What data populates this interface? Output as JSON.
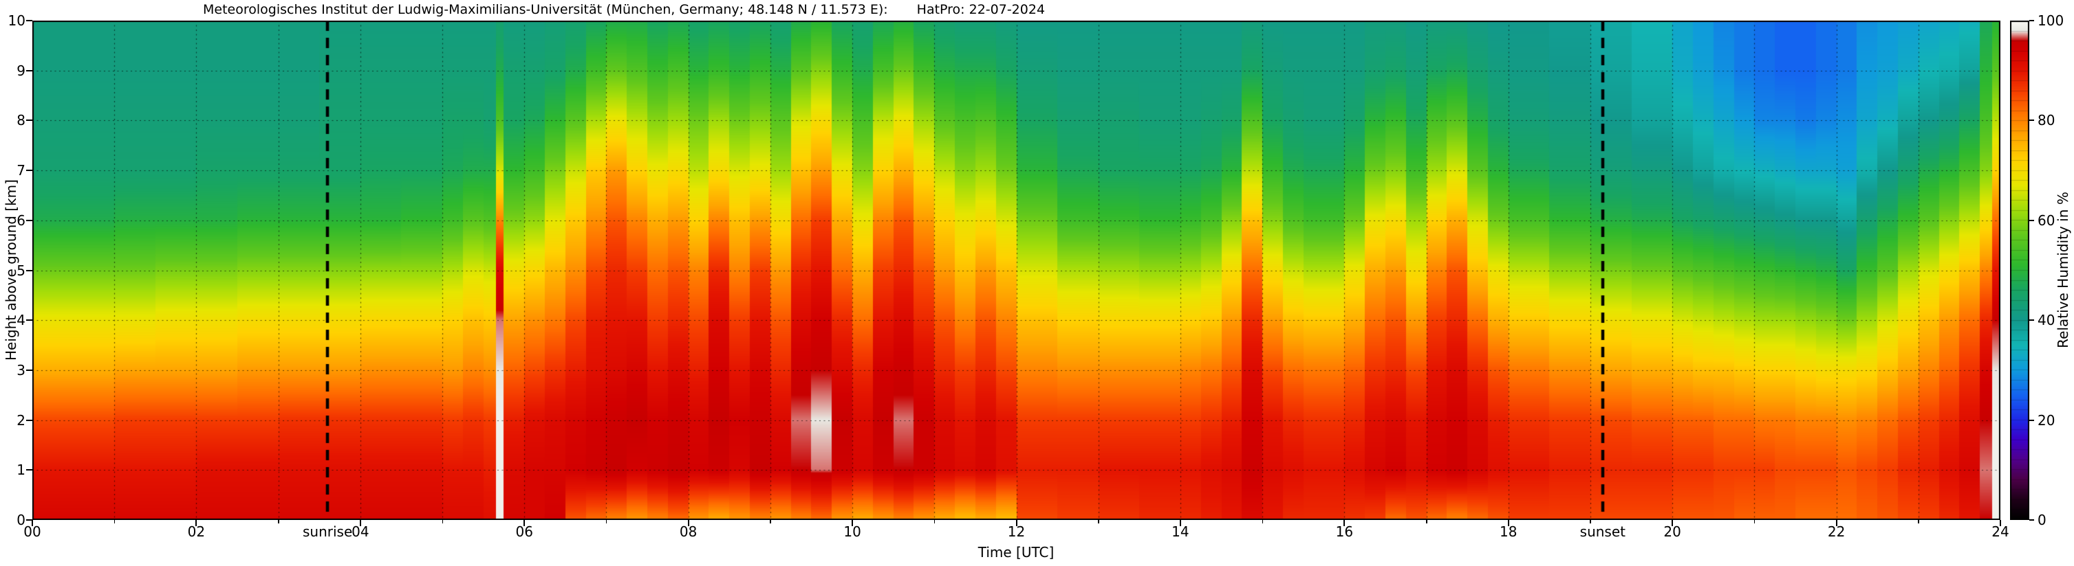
{
  "title": {
    "left": "Meteorologisches Institut der Ludwig-Maximilians-Universität (München, Germany; 48.148 N / 11.573 E):",
    "right": "HatPro: 22-07-2024"
  },
  "annotations": {
    "sunrise": {
      "label": "sunrise",
      "time_utc": 3.6
    },
    "sunset": {
      "label": "sunset",
      "time_utc": 19.15
    }
  },
  "chart_data": {
    "type": "heatmap",
    "title": "Meteorologisches Institut der Ludwig-Maximilians-Universität (München, Germany; 48.148 N / 11.573 E):    HatPro: 22-07-2024",
    "xlabel": "Time [UTC]",
    "ylabel": "Height above ground [km]",
    "colorbar_label": "Relative Humidity in %",
    "xlim": [
      0,
      24
    ],
    "ylim": [
      0,
      10
    ],
    "clim": [
      0,
      100
    ],
    "grid": "dotted, 1 h x 1 km",
    "legend_position": "colorbar-right",
    "sunrise_utc": 3.6,
    "sunset_utc": 19.15,
    "x_ticks": {
      "values": [
        0,
        2,
        4,
        6,
        8,
        10,
        12,
        14,
        16,
        18,
        20,
        22,
        24
      ],
      "labels": [
        "00",
        "02",
        "04",
        "06",
        "08",
        "10",
        "12",
        "14",
        "16",
        "18",
        "20",
        "22",
        "24"
      ]
    },
    "y_ticks": {
      "values": [
        0,
        1,
        2,
        3,
        4,
        5,
        6,
        7,
        8,
        9,
        10
      ],
      "labels": [
        "0",
        "1",
        "2",
        "3",
        "4",
        "5",
        "6",
        "7",
        "8",
        "9",
        "10"
      ]
    },
    "colorbar_ticks": {
      "values": [
        0,
        20,
        40,
        60,
        80,
        100
      ],
      "labels": [
        "0",
        "20",
        "40",
        "60",
        "80",
        "100"
      ]
    },
    "colormap_stops": [
      [
        0,
        "#000000"
      ],
      [
        4,
        "#1e0018"
      ],
      [
        8,
        "#4b0048"
      ],
      [
        12,
        "#50008c"
      ],
      [
        16,
        "#3c00c8"
      ],
      [
        20,
        "#1e28e6"
      ],
      [
        25,
        "#1464f0"
      ],
      [
        30,
        "#0f9bdc"
      ],
      [
        35,
        "#12b4b4"
      ],
      [
        40,
        "#12998c"
      ],
      [
        46,
        "#18a562"
      ],
      [
        51,
        "#2eb82e"
      ],
      [
        57,
        "#62c81c"
      ],
      [
        62,
        "#a0dc0a"
      ],
      [
        67,
        "#e6e600"
      ],
      [
        72,
        "#ffd200"
      ],
      [
        77,
        "#ffa500"
      ],
      [
        82,
        "#ff6e00"
      ],
      [
        86,
        "#f53c00"
      ],
      [
        90,
        "#e41400"
      ],
      [
        94,
        "#d20000"
      ],
      [
        96,
        "#c80000"
      ],
      [
        98,
        "#e8e8e2"
      ],
      [
        100,
        "#fafaf5"
      ]
    ],
    "heights_km": [
      0,
      1,
      2,
      3,
      4,
      5,
      6,
      7,
      8,
      9,
      10
    ],
    "times_utc": [
      0,
      0.5,
      1,
      1.5,
      2,
      2.5,
      3,
      3.5,
      4,
      4.5,
      5,
      5.25,
      5.5,
      5.65,
      5.75,
      6,
      6.25,
      6.5,
      6.75,
      7,
      7.25,
      7.5,
      7.75,
      8,
      8.25,
      8.5,
      8.75,
      9,
      9.25,
      9.5,
      9.75,
      10,
      10.25,
      10.5,
      10.75,
      11,
      11.25,
      11.5,
      11.75,
      12,
      12.5,
      13,
      13.5,
      14,
      14.25,
      14.5,
      14.75,
      15,
      15.25,
      15.5,
      16,
      16.25,
      16.5,
      16.75,
      17,
      17.25,
      17.5,
      17.75,
      18,
      18.5,
      19,
      19.5,
      20,
      20.25,
      20.5,
      20.75,
      21,
      21.25,
      21.5,
      21.75,
      22,
      22.25,
      22.5,
      22.75,
      23,
      23.25,
      23.5,
      23.75,
      23.9
    ],
    "rh_percent": [
      [
        93,
        90,
        85,
        76,
        68,
        58,
        48,
        44,
        43,
        42,
        42
      ],
      [
        93,
        90,
        85,
        76,
        68,
        58,
        48,
        44,
        43,
        42,
        42
      ],
      [
        93,
        90,
        86,
        77,
        68,
        58,
        49,
        44,
        43,
        42,
        42
      ],
      [
        93,
        90,
        86,
        77,
        69,
        59,
        49,
        44,
        43,
        42,
        42
      ],
      [
        93,
        91,
        86,
        77,
        69,
        59,
        49,
        45,
        43,
        42,
        42
      ],
      [
        93,
        91,
        86,
        78,
        70,
        60,
        50,
        45,
        43,
        42,
        42
      ],
      [
        93,
        91,
        87,
        78,
        70,
        60,
        50,
        45,
        43,
        42,
        42
      ],
      [
        93,
        91,
        87,
        78,
        70,
        60,
        50,
        45,
        44,
        43,
        42
      ],
      [
        93,
        91,
        87,
        79,
        71,
        61,
        50,
        46,
        44,
        43,
        42
      ],
      [
        93,
        91,
        87,
        79,
        71,
        61,
        51,
        46,
        44,
        43,
        42
      ],
      [
        92,
        90,
        86,
        78,
        72,
        63,
        53,
        47,
        45,
        43,
        42
      ],
      [
        92,
        90,
        87,
        80,
        74,
        66,
        56,
        48,
        45,
        43,
        42
      ],
      [
        91,
        89,
        86,
        79,
        73,
        65,
        55,
        48,
        44,
        43,
        42
      ],
      [
        99,
        99,
        99,
        98,
        97,
        92,
        80,
        66,
        55,
        48,
        44
      ],
      [
        93,
        92,
        89,
        83,
        77,
        69,
        59,
        51,
        46,
        44,
        42
      ],
      [
        93,
        93,
        91,
        85,
        79,
        71,
        61,
        53,
        47,
        44,
        42
      ],
      [
        94,
        93,
        92,
        87,
        81,
        75,
        67,
        59,
        51,
        45,
        43
      ],
      [
        84,
        94,
        93,
        89,
        85,
        79,
        73,
        65,
        56,
        48,
        44
      ],
      [
        82,
        95,
        94,
        91,
        89,
        85,
        79,
        73,
        63,
        53,
        46
      ],
      [
        80,
        96,
        95,
        92,
        90,
        88,
        84,
        78,
        68,
        57,
        48
      ],
      [
        78,
        94,
        96,
        93,
        90,
        86,
        80,
        72,
        64,
        55,
        48
      ],
      [
        80,
        95,
        94,
        90,
        86,
        82,
        76,
        68,
        60,
        52,
        46
      ],
      [
        82,
        96,
        95,
        92,
        88,
        84,
        78,
        70,
        62,
        54,
        47
      ],
      [
        78,
        94,
        93,
        89,
        85,
        80,
        72,
        64,
        58,
        50,
        45
      ],
      [
        76,
        95,
        96,
        94,
        92,
        88,
        80,
        70,
        62,
        52,
        46
      ],
      [
        78,
        93,
        94,
        90,
        86,
        80,
        74,
        66,
        58,
        50,
        45
      ],
      [
        80,
        96,
        95,
        93,
        90,
        86,
        78,
        68,
        60,
        52,
        46
      ],
      [
        78,
        94,
        92,
        88,
        84,
        78,
        70,
        62,
        56,
        49,
        44
      ],
      [
        80,
        96,
        97,
        95,
        92,
        88,
        82,
        74,
        66,
        56,
        48
      ],
      [
        82,
        97,
        98,
        96,
        94,
        90,
        86,
        78,
        70,
        60,
        50
      ],
      [
        78,
        95,
        96,
        92,
        88,
        82,
        76,
        68,
        60,
        52,
        46
      ],
      [
        76,
        93,
        92,
        88,
        82,
        76,
        68,
        60,
        54,
        48,
        44
      ],
      [
        78,
        95,
        96,
        94,
        90,
        86,
        80,
        72,
        64,
        54,
        47
      ],
      [
        80,
        96,
        97,
        95,
        92,
        88,
        84,
        76,
        68,
        58,
        49
      ],
      [
        78,
        95,
        95,
        92,
        88,
        84,
        78,
        70,
        62,
        53,
        46
      ],
      [
        76,
        93,
        92,
        88,
        84,
        78,
        72,
        64,
        56,
        49,
        44
      ],
      [
        74,
        92,
        90,
        86,
        80,
        74,
        68,
        60,
        54,
        48,
        43
      ],
      [
        76,
        93,
        92,
        88,
        84,
        78,
        70,
        62,
        55,
        48,
        43
      ],
      [
        74,
        91,
        90,
        85,
        80,
        74,
        66,
        58,
        52,
        46,
        42
      ],
      [
        85,
        89,
        86,
        80,
        74,
        66,
        58,
        50,
        46,
        43,
        41
      ],
      [
        86,
        89,
        86,
        79,
        72,
        63,
        53,
        47,
        44,
        42,
        41
      ],
      [
        87,
        90,
        86,
        79,
        71,
        62,
        52,
        46,
        44,
        42,
        41
      ],
      [
        88,
        90,
        86,
        79,
        71,
        61,
        51,
        46,
        43,
        42,
        41
      ],
      [
        88,
        90,
        86,
        80,
        72,
        62,
        52,
        46,
        43,
        42,
        41
      ],
      [
        89,
        91,
        87,
        81,
        73,
        64,
        54,
        47,
        44,
        42,
        41
      ],
      [
        90,
        92,
        89,
        84,
        78,
        70,
        60,
        50,
        45,
        42,
        41
      ],
      [
        92,
        95,
        94,
        92,
        88,
        82,
        74,
        64,
        55,
        46,
        42
      ],
      [
        90,
        92,
        90,
        85,
        78,
        70,
        60,
        52,
        46,
        43,
        41
      ],
      [
        88,
        91,
        88,
        82,
        74,
        65,
        55,
        48,
        44,
        42,
        41
      ],
      [
        88,
        90,
        87,
        81,
        73,
        63,
        53,
        47,
        43,
        42,
        41
      ],
      [
        87,
        91,
        88,
        83,
        76,
        68,
        58,
        50,
        45,
        42,
        41
      ],
      [
        86,
        93,
        91,
        87,
        82,
        76,
        68,
        58,
        50,
        44,
        42
      ],
      [
        82,
        94,
        92,
        88,
        84,
        78,
        70,
        60,
        52,
        45,
        42
      ],
      [
        84,
        92,
        90,
        85,
        78,
        70,
        62,
        53,
        47,
        43,
        41
      ],
      [
        82,
        94,
        93,
        90,
        86,
        80,
        72,
        62,
        54,
        46,
        42
      ],
      [
        80,
        95,
        94,
        92,
        88,
        84,
        76,
        66,
        56,
        47,
        42
      ],
      [
        82,
        93,
        92,
        88,
        82,
        74,
        66,
        56,
        49,
        44,
        41
      ],
      [
        84,
        91,
        89,
        84,
        76,
        68,
        58,
        50,
        45,
        42,
        40
      ],
      [
        86,
        90,
        87,
        81,
        73,
        64,
        54,
        47,
        43,
        41,
        40
      ],
      [
        86,
        89,
        86,
        79,
        71,
        61,
        51,
        45,
        42,
        40,
        39
      ],
      [
        85,
        88,
        85,
        77,
        69,
        59,
        49,
        43,
        40,
        38,
        37
      ],
      [
        85,
        88,
        84,
        76,
        68,
        58,
        48,
        42,
        38,
        36,
        35
      ],
      [
        84,
        87,
        83,
        75,
        66,
        56,
        46,
        40,
        36,
        33,
        32
      ],
      [
        84,
        87,
        83,
        74,
        65,
        55,
        45,
        38,
        34,
        31,
        30
      ],
      [
        84,
        86,
        82,
        74,
        64,
        54,
        44,
        36,
        32,
        29,
        28
      ],
      [
        83,
        86,
        82,
        73,
        63,
        53,
        43,
        35,
        30,
        27,
        27
      ],
      [
        83,
        86,
        81,
        72,
        62,
        52,
        42,
        34,
        28,
        26,
        26
      ],
      [
        83,
        85,
        81,
        72,
        62,
        51,
        41,
        33,
        28,
        25,
        25
      ],
      [
        82,
        85,
        80,
        71,
        61,
        50,
        40,
        32,
        27,
        25,
        25
      ],
      [
        82,
        85,
        80,
        70,
        60,
        49,
        40,
        32,
        28,
        26,
        26
      ],
      [
        82,
        84,
        79,
        70,
        58,
        46,
        38,
        31,
        29,
        27,
        27
      ],
      [
        83,
        85,
        80,
        71,
        62,
        52,
        44,
        36,
        32,
        30,
        29
      ],
      [
        84,
        86,
        82,
        74,
        66,
        56,
        48,
        40,
        34,
        31,
        30
      ],
      [
        85,
        88,
        84,
        77,
        70,
        62,
        52,
        44,
        38,
        33,
        31
      ],
      [
        86,
        89,
        86,
        80,
        74,
        66,
        56,
        48,
        40,
        35,
        32
      ],
      [
        88,
        91,
        88,
        83,
        78,
        70,
        60,
        50,
        42,
        36,
        33
      ],
      [
        90,
        93,
        91,
        87,
        82,
        74,
        64,
        54,
        46,
        38,
        34
      ],
      [
        96,
        97,
        96,
        93,
        88,
        80,
        70,
        60,
        54,
        50,
        47
      ],
      [
        99,
        99,
        99,
        98,
        96,
        90,
        82,
        72,
        64,
        56,
        50
      ]
    ]
  }
}
